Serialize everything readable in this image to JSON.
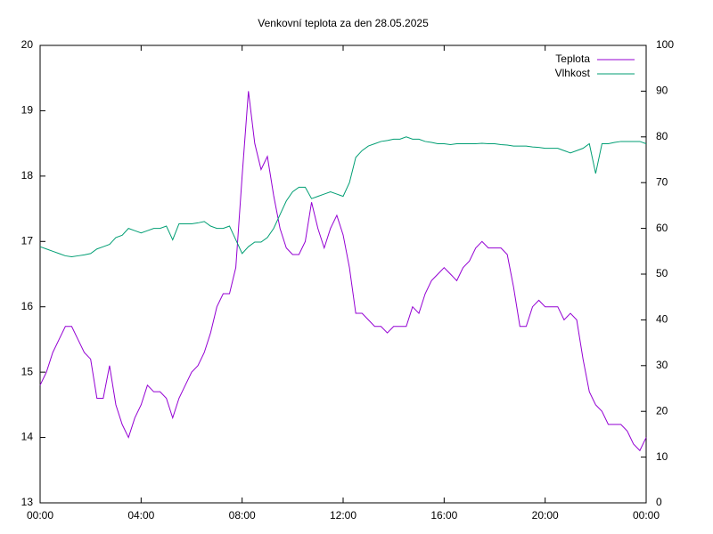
{
  "chart_data": {
    "type": "line",
    "title": "Venkovní teplota za den 28.05.2025",
    "x": [
      0,
      0.25,
      0.5,
      0.75,
      1,
      1.25,
      1.5,
      1.75,
      2,
      2.25,
      2.5,
      2.75,
      3,
      3.25,
      3.5,
      3.75,
      4,
      4.25,
      4.5,
      4.75,
      5,
      5.25,
      5.5,
      5.75,
      6,
      6.25,
      6.5,
      6.75,
      7,
      7.25,
      7.5,
      7.75,
      8,
      8.25,
      8.5,
      8.75,
      9,
      9.25,
      9.5,
      9.75,
      10,
      10.25,
      10.5,
      10.75,
      11,
      11.25,
      11.5,
      11.75,
      12,
      12.25,
      12.5,
      12.75,
      13,
      13.25,
      13.5,
      13.75,
      14,
      14.25,
      14.5,
      14.75,
      15,
      15.25,
      15.5,
      15.75,
      16,
      16.25,
      16.5,
      16.75,
      17,
      17.25,
      17.5,
      17.75,
      18,
      18.25,
      18.5,
      18.75,
      19,
      19.25,
      19.5,
      19.75,
      20,
      20.25,
      20.5,
      20.75,
      21,
      21.25,
      21.5,
      21.75,
      22,
      22.25,
      22.5,
      22.75,
      23,
      23.25,
      23.5,
      23.75,
      24
    ],
    "series": [
      {
        "name": "Teplota",
        "color": "#9400d3",
        "values": [
          14.8,
          15.0,
          15.3,
          15.5,
          15.7,
          15.7,
          15.5,
          15.3,
          15.2,
          14.6,
          14.6,
          15.1,
          14.5,
          14.2,
          14.0,
          14.3,
          14.5,
          14.8,
          14.7,
          14.7,
          14.6,
          14.3,
          14.6,
          14.8,
          15.0,
          15.1,
          15.3,
          15.6,
          16.0,
          16.2,
          16.2,
          16.6,
          18.0,
          19.3,
          18.5,
          18.1,
          18.3,
          17.7,
          17.2,
          16.9,
          16.8,
          16.8,
          17.0,
          17.6,
          17.2,
          16.9,
          17.2,
          17.4,
          17.1,
          16.6,
          15.9,
          15.9,
          15.8,
          15.7,
          15.7,
          15.6,
          15.7,
          15.7,
          15.7,
          16.0,
          15.9,
          16.2,
          16.4,
          16.5,
          16.6,
          16.5,
          16.4,
          16.6,
          16.7,
          16.9,
          17.0,
          16.9,
          16.9,
          16.9,
          16.8,
          16.3,
          15.7,
          15.7,
          16.0,
          16.1,
          16.0,
          16.0,
          16.0,
          15.8,
          15.9,
          15.8,
          15.2,
          14.7,
          14.5,
          14.4,
          14.2,
          14.2,
          14.2,
          14.1,
          13.9,
          13.8,
          14.0
        ]
      },
      {
        "name": "Vlhkost",
        "color": "#009e73",
        "axis": "y2",
        "values": [
          56,
          55.5,
          55,
          54.5,
          54,
          53.8,
          54,
          54.2,
          54.5,
          55.5,
          56,
          56.5,
          58,
          58.5,
          60,
          59.5,
          59,
          59.5,
          60,
          60,
          60.5,
          57.5,
          61,
          61,
          61,
          61.2,
          61.5,
          60.5,
          60,
          60,
          60.5,
          57.5,
          54.5,
          56,
          57,
          57,
          58,
          60,
          63,
          66,
          68,
          69,
          69,
          66.5,
          67,
          67.5,
          68,
          67.5,
          67,
          70,
          75.5,
          77,
          78,
          78.5,
          79,
          79.2,
          79.5,
          79.5,
          80,
          79.5,
          79.5,
          79,
          78.8,
          78.5,
          78.5,
          78.3,
          78.5,
          78.5,
          78.5,
          78.5,
          78.6,
          78.5,
          78.5,
          78.3,
          78.2,
          78,
          78,
          78,
          77.8,
          77.7,
          77.5,
          77.5,
          77.5,
          77,
          76.5,
          77,
          77.5,
          78.5,
          72,
          78.5,
          78.5,
          78.8,
          79,
          79,
          79,
          79,
          78.5
        ]
      }
    ],
    "xlim": [
      0,
      24
    ],
    "xticks": [
      {
        "value": 0,
        "label": "00:00"
      },
      {
        "value": 4,
        "label": "04:00"
      },
      {
        "value": 8,
        "label": "08:00"
      },
      {
        "value": 12,
        "label": "12:00"
      },
      {
        "value": 16,
        "label": "16:00"
      },
      {
        "value": 20,
        "label": "20:00"
      },
      {
        "value": 24,
        "label": "00:00"
      }
    ],
    "ylim": [
      13,
      20
    ],
    "yticks": [
      13,
      14,
      15,
      16,
      17,
      18,
      19,
      20
    ],
    "y2lim": [
      0,
      100
    ],
    "y2ticks": [
      0,
      10,
      20,
      30,
      40,
      50,
      60,
      70,
      80,
      90,
      100
    ],
    "legend": "top-right"
  }
}
